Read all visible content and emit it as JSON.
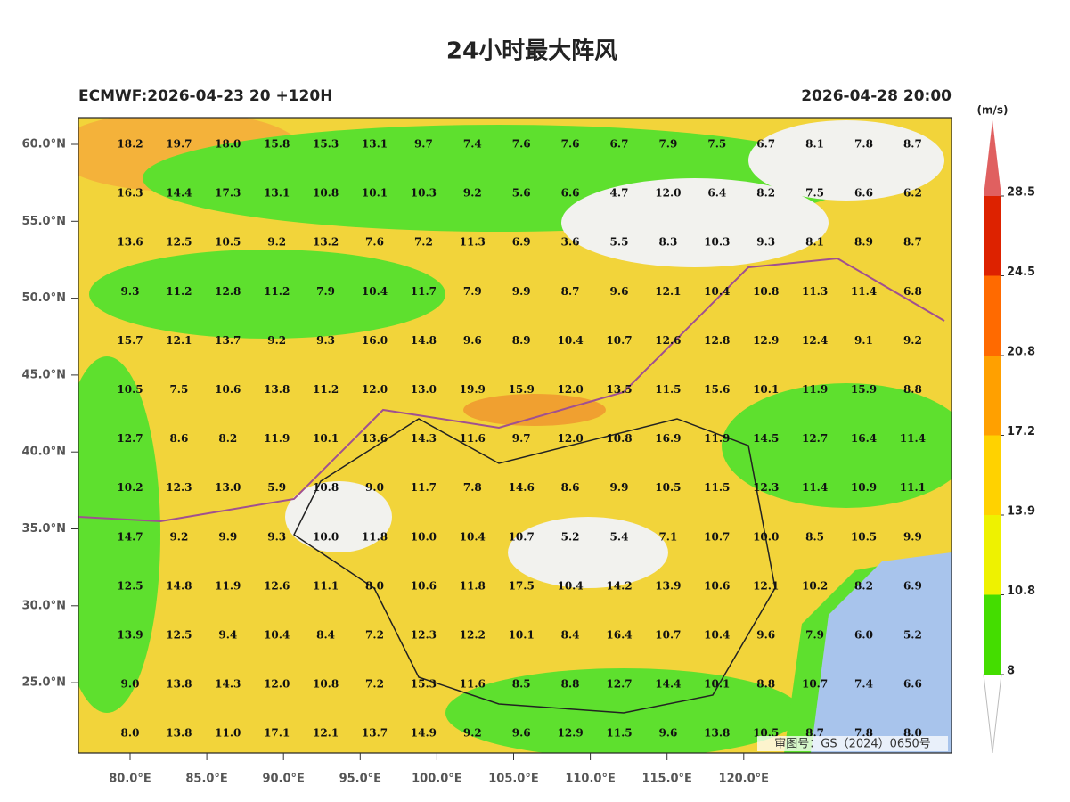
{
  "header": {
    "title": "24小时最大阵风",
    "left": "ECMWF:2026-04-23 20 +120H",
    "right": "2026-04-28 20:00"
  },
  "lat_labels": [
    "60.0°N",
    "55.0°N",
    "50.0°N",
    "45.0°N",
    "40.0°N",
    "35.0°N",
    "30.0°N",
    "25.0°N"
  ],
  "lon_labels": [
    "80.0°E",
    "85.0°E",
    "90.0°E",
    "95.0°E",
    "100.0°E",
    "105.0°E",
    "110.0°E",
    "115.0°E",
    "120.0°E"
  ],
  "grid": [
    [
      "18.2",
      "19.7",
      "18.0",
      "15.8",
      "15.3",
      "13.1",
      "9.7",
      "7.4",
      "7.6",
      "7.6",
      "6.7",
      "7.9",
      "7.5",
      "6.7",
      "8.1",
      "7.8",
      "8.7"
    ],
    [
      "16.3",
      "14.4",
      "17.3",
      "13.1",
      "10.8",
      "10.1",
      "10.3",
      "9.2",
      "5.6",
      "6.6",
      "4.7",
      "12.0",
      "6.4",
      "8.2",
      "7.5",
      "6.6",
      "6.2"
    ],
    [
      "13.6",
      "12.5",
      "10.5",
      "9.2",
      "13.2",
      "7.6",
      "7.2",
      "11.3",
      "6.9",
      "3.6",
      "5.5",
      "8.3",
      "10.3",
      "9.3",
      "8.1",
      "8.9",
      "8.7"
    ],
    [
      "9.3",
      "11.2",
      "12.8",
      "11.2",
      "7.9",
      "10.4",
      "11.7",
      "7.9",
      "9.9",
      "8.7",
      "9.6",
      "12.1",
      "10.4",
      "10.8",
      "11.3",
      "11.4",
      "6.8"
    ],
    [
      "15.7",
      "12.1",
      "13.7",
      "9.2",
      "9.3",
      "16.0",
      "14.8",
      "9.6",
      "8.9",
      "10.4",
      "10.7",
      "12.6",
      "12.8",
      "12.9",
      "12.4",
      "9.1",
      "9.2"
    ],
    [
      "10.5",
      "7.5",
      "10.6",
      "13.8",
      "11.2",
      "12.0",
      "13.0",
      "19.9",
      "15.9",
      "12.0",
      "13.5",
      "11.5",
      "15.6",
      "10.1",
      "11.9",
      "15.9",
      "8.8"
    ],
    [
      "12.7",
      "8.6",
      "8.2",
      "11.9",
      "10.1",
      "13.6",
      "14.3",
      "11.6",
      "9.7",
      "12.0",
      "10.8",
      "16.9",
      "11.9",
      "14.5",
      "12.7",
      "16.4",
      "11.4"
    ],
    [
      "10.2",
      "12.3",
      "13.0",
      "5.9",
      "10.8",
      "9.0",
      "11.7",
      "7.8",
      "14.6",
      "8.6",
      "9.9",
      "10.5",
      "11.5",
      "12.3",
      "11.4",
      "10.9",
      "11.1"
    ],
    [
      "14.7",
      "9.2",
      "9.9",
      "9.3",
      "10.0",
      "11.8",
      "10.0",
      "10.4",
      "10.7",
      "5.2",
      "5.4",
      "7.1",
      "10.7",
      "10.0",
      "8.5",
      "10.5",
      "9.9"
    ],
    [
      "12.5",
      "14.8",
      "11.9",
      "12.6",
      "11.1",
      "8.0",
      "10.6",
      "11.8",
      "17.5",
      "10.4",
      "14.2",
      "13.9",
      "10.6",
      "12.1",
      "10.2",
      "8.2",
      "6.9"
    ],
    [
      "13.9",
      "12.5",
      "9.4",
      "10.4",
      "8.4",
      "7.2",
      "12.3",
      "12.2",
      "10.1",
      "8.4",
      "16.4",
      "10.7",
      "10.4",
      "9.6",
      "7.9",
      "6.0",
      "5.2"
    ],
    [
      "9.0",
      "13.8",
      "14.3",
      "12.0",
      "10.8",
      "7.2",
      "15.3",
      "11.6",
      "8.5",
      "8.8",
      "12.7",
      "14.4",
      "10.1",
      "8.8",
      "10.7",
      "7.4",
      "6.6"
    ],
    [
      "8.0",
      "13.8",
      "11.0",
      "17.1",
      "12.1",
      "13.7",
      "14.9",
      "9.2",
      "9.6",
      "12.9",
      "11.5",
      "9.6",
      "13.8",
      "10.5",
      "8.7",
      "7.8",
      "8.0"
    ]
  ],
  "colorbar": {
    "unit": "(m/s)",
    "levels": [
      8,
      10.8,
      13.9,
      17.2,
      20.8,
      24.5,
      28.5
    ],
    "colors": [
      "#44dd00",
      "#eef200",
      "#ffd200",
      "#ffa000",
      "#ff6a00",
      "#dd2200"
    ],
    "top_color": "#e06060"
  },
  "watermark": "审图号：GS（2024）0650号"
}
